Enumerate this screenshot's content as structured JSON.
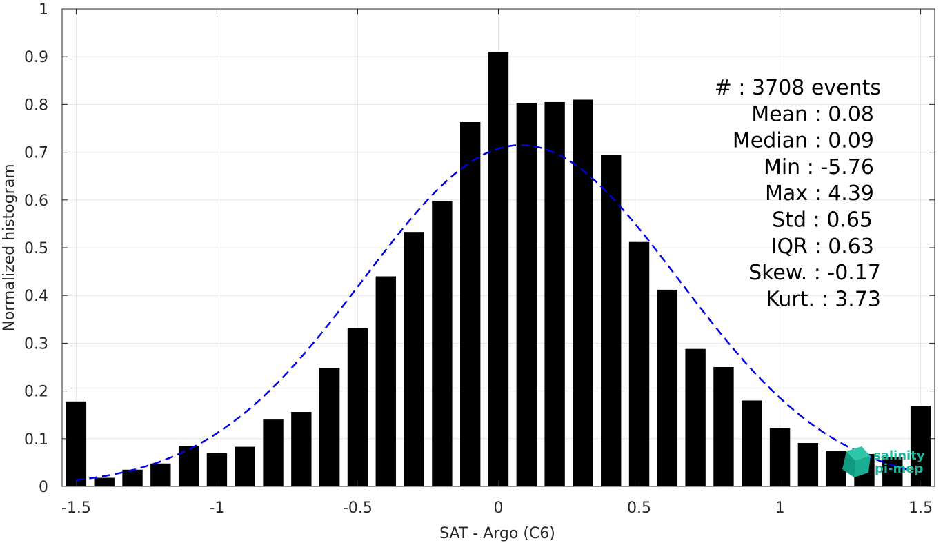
{
  "chart_data": {
    "type": "bar",
    "xlabel": "SAT - Argo (C6)",
    "ylabel": "Normalized histogram",
    "xlim": [
      -1.55,
      1.55
    ],
    "ylim": [
      0,
      1
    ],
    "grid": true,
    "x": [
      -1.5,
      -1.4,
      -1.3,
      -1.2,
      -1.1,
      -1.0,
      -0.9,
      -0.8,
      -0.7,
      -0.6,
      -0.5,
      -0.4,
      -0.3,
      -0.2,
      -0.1,
      0.0,
      0.1,
      0.2,
      0.3,
      0.4,
      0.5,
      0.6,
      0.7,
      0.8,
      0.9,
      1.0,
      1.1,
      1.2,
      1.3,
      1.4,
      1.5
    ],
    "values": [
      0.178,
      0.018,
      0.035,
      0.048,
      0.085,
      0.07,
      0.083,
      0.14,
      0.156,
      0.248,
      0.331,
      0.44,
      0.533,
      0.598,
      0.763,
      0.91,
      0.803,
      0.805,
      0.81,
      0.695,
      0.512,
      0.412,
      0.288,
      0.25,
      0.18,
      0.122,
      0.091,
      0.075,
      0.068,
      0.062,
      0.169
    ],
    "xticks": [
      "-1.5",
      "-1",
      "-0.5",
      "0",
      "0.5",
      "1",
      "1.5"
    ],
    "xtick_values": [
      -1.5,
      -1,
      -0.5,
      0,
      0.5,
      1,
      1.5
    ],
    "yticks": [
      "0",
      "0.1",
      "0.2",
      "0.3",
      "0.4",
      "0.5",
      "0.6",
      "0.7",
      "0.8",
      "0.9",
      "1"
    ],
    "ytick_values": [
      0,
      0.1,
      0.2,
      0.3,
      0.4,
      0.5,
      0.6,
      0.7,
      0.8,
      0.9,
      1
    ],
    "fit_curve": {
      "style": "dashed",
      "color": "#0000e6",
      "mean": 0.08,
      "std": 0.56,
      "peak": 0.715,
      "x_range": [
        -1.5,
        1.45
      ]
    },
    "bar_color": "#000000",
    "annotations": [
      "#  : 3708 events",
      "Mean : 0.08",
      "Median : 0.09",
      "Min : -5.76",
      "Max : 4.39",
      "Std : 0.65",
      "IQR : 0.63",
      "Skew. : -0.17",
      "Kurt. : 3.73"
    ]
  },
  "logo": {
    "text_line1": "salinity",
    "text_line2": "pi-mep",
    "color": "#1fb59a"
  }
}
